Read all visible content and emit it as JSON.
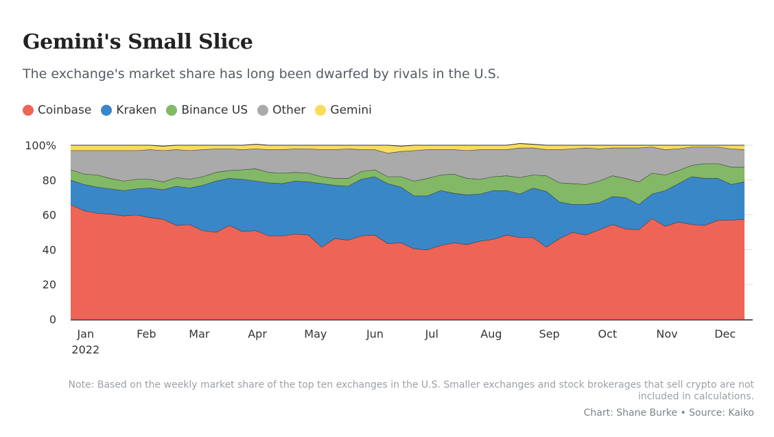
{
  "header": {
    "title": "Gemini's Small Slice",
    "subtitle": "The exchange's market share has long been dwarfed by rivals in the U.S."
  },
  "legend": [
    {
      "label": "Coinbase",
      "color": "#ee6456"
    },
    {
      "label": "Kraken",
      "color": "#3a87c8"
    },
    {
      "label": "Binance US",
      "color": "#82b866"
    },
    {
      "label": "Other",
      "color": "#aaaaaa"
    },
    {
      "label": "Gemini",
      "color": "#f9dc5c"
    }
  ],
  "footer": {
    "note": "Note: Based on the weekly market share of the top ten exchanges in the U.S. Smaller exchanges and stock brokerages that sell crypto are not included in calculations.",
    "credit": "Chart: Shane Burke • Source: Kaiko"
  },
  "chart_data": {
    "type": "area",
    "stacked": true,
    "x_unit": "week",
    "x_start": "2022-01-03",
    "x_end": "2022-12-26",
    "y_ticks": [
      "0",
      "20",
      "40",
      "60",
      "80",
      "100%"
    ],
    "ylim": [
      0,
      100
    ],
    "grid": "horizontal",
    "x_tick_labels": [
      {
        "label": "Jan",
        "sublabel": "2022",
        "week": 0.3
      },
      {
        "label": "Feb",
        "week": 4.9
      },
      {
        "label": "Mar",
        "week": 8.9
      },
      {
        "label": "Apr",
        "week": 13.3
      },
      {
        "label": "May",
        "week": 17.7
      },
      {
        "label": "Jun",
        "week": 22.2
      },
      {
        "label": "Jul",
        "week": 26.5
      },
      {
        "label": "Aug",
        "week": 31.0
      },
      {
        "label": "Sep",
        "week": 35.4
      },
      {
        "label": "Oct",
        "week": 39.8
      },
      {
        "label": "Nov",
        "week": 44.3
      },
      {
        "label": "Dec",
        "week": 48.7
      }
    ],
    "series": [
      {
        "name": "Coinbase",
        "color": "#ee6456",
        "values": [
          66,
          62.5,
          61,
          60.5,
          59.5,
          60,
          58.5,
          57.5,
          54,
          54.5,
          51,
          50,
          54,
          50.5,
          51,
          48,
          48,
          49,
          48.5,
          41.5,
          46.5,
          45.5,
          48,
          48.5,
          43.5,
          44,
          40.5,
          40,
          42.5,
          44,
          43,
          45,
          46,
          48.5,
          47,
          47,
          41.5,
          46.5,
          50,
          48.5,
          51.5,
          54.5,
          52,
          51.5,
          58,
          53.5,
          56,
          54.5,
          54,
          57,
          57,
          57.5
        ]
      },
      {
        "name": "Kraken",
        "color": "#3a87c8",
        "values": [
          14,
          15,
          15,
          14.5,
          14.5,
          15,
          17,
          17,
          22.5,
          21,
          26,
          29.5,
          27,
          30,
          28.5,
          30.5,
          30,
          30.5,
          30.5,
          36.5,
          30.5,
          31,
          32.5,
          33.5,
          34.5,
          32,
          30.5,
          31,
          31.5,
          28.5,
          28.5,
          27,
          28,
          25.5,
          25,
          28.5,
          32,
          21,
          16,
          17.5,
          15.5,
          16,
          18,
          14.5,
          14,
          20.5,
          22,
          27.5,
          27,
          24,
          20.5,
          21.5
        ]
      },
      {
        "name": "Binance US",
        "color": "#82b866",
        "values": [
          6,
          6,
          7,
          6,
          5.5,
          5.5,
          5,
          4.5,
          5,
          5,
          5,
          5,
          4.5,
          5.5,
          7,
          6,
          6,
          5,
          5,
          4,
          4,
          4.5,
          4.5,
          4,
          4,
          6,
          8.5,
          10,
          9,
          11,
          9.5,
          8.5,
          8,
          8.5,
          9.5,
          7.5,
          9,
          11,
          12,
          11.5,
          12.5,
          12,
          11,
          13,
          12,
          9,
          7.5,
          6.5,
          8.5,
          8.5,
          10,
          8.5
        ]
      },
      {
        "name": "Other",
        "color": "#aaaaaa",
        "values": [
          11,
          13.5,
          14,
          16,
          17.5,
          16.5,
          17,
          18,
          16,
          16.5,
          15.5,
          13.5,
          12.5,
          11.5,
          11.5,
          13,
          13.5,
          13.5,
          14,
          15.5,
          16.5,
          17,
          12.5,
          11.5,
          13.5,
          14.5,
          17.5,
          16.5,
          14.5,
          14,
          16,
          17,
          15.5,
          15,
          17,
          15.5,
          15,
          19,
          20,
          21,
          18.5,
          16,
          17.5,
          19.5,
          15,
          14.5,
          12.5,
          10.5,
          9.5,
          9.5,
          10.5,
          10
        ]
      },
      {
        "name": "Gemini",
        "color": "#f9dc5c",
        "values": [
          3,
          3,
          3,
          3,
          3,
          3,
          2.5,
          2.5,
          2.5,
          3,
          2.5,
          2,
          2,
          2.5,
          2.5,
          2.5,
          2.5,
          2,
          2,
          2.5,
          2.5,
          2,
          2.5,
          2.5,
          4.5,
          3,
          3,
          2.5,
          2.5,
          2.5,
          3,
          2.5,
          2.5,
          2.5,
          2.5,
          2,
          2.5,
          2.5,
          2,
          1.5,
          2,
          1.5,
          1.5,
          1.5,
          1,
          2.5,
          2,
          1,
          1,
          1,
          2,
          2.5
        ]
      }
    ]
  }
}
